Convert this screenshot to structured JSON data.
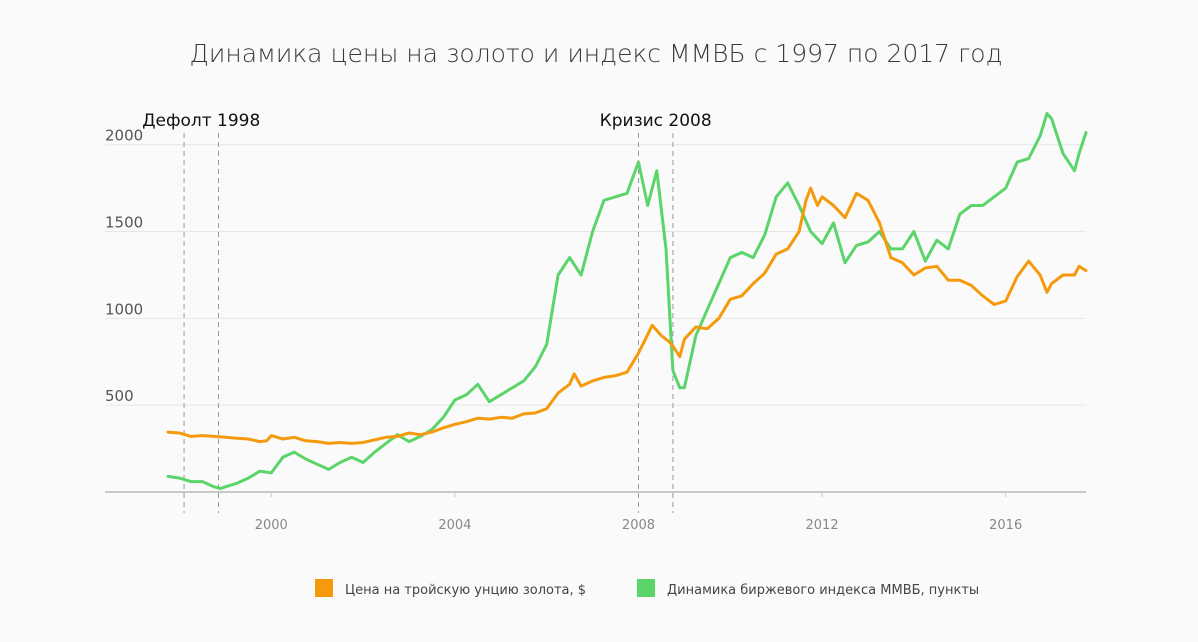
{
  "chart_data": {
    "type": "line",
    "title": "Динамика цены на золото и индекс ММВБ с 1997 по 2017 год",
    "xlabel": "",
    "ylabel": "",
    "xlim": [
      1997.75,
      2017.75
    ],
    "ylim": [
      0,
      2200
    ],
    "x_ticks": [
      2000,
      2004,
      2008,
      2012,
      2016
    ],
    "y_ticks": [
      500,
      1000,
      1500,
      2000
    ],
    "grid": true,
    "legend_position": "bottom-center",
    "annotations": [
      {
        "label": "Дефолт 1998",
        "x_start": 1998.1,
        "x_end": 1998.85
      },
      {
        "label": "Кризис 2008",
        "x_start": 2008.0,
        "x_end": 2008.75
      }
    ],
    "series": [
      {
        "name": "Цена на тройскую унцию золота, $",
        "color": "#f49a0c",
        "points": [
          [
            1997.75,
            345
          ],
          [
            1998.0,
            340
          ],
          [
            1998.25,
            320
          ],
          [
            1998.5,
            325
          ],
          [
            1998.75,
            320
          ],
          [
            1999.0,
            315
          ],
          [
            1999.25,
            310
          ],
          [
            1999.5,
            305
          ],
          [
            1999.75,
            290
          ],
          [
            1999.9,
            295
          ],
          [
            2000.0,
            325
          ],
          [
            2000.25,
            305
          ],
          [
            2000.5,
            315
          ],
          [
            2000.75,
            295
          ],
          [
            2001.0,
            290
          ],
          [
            2001.25,
            280
          ],
          [
            2001.5,
            285
          ],
          [
            2001.75,
            280
          ],
          [
            2002.0,
            285
          ],
          [
            2002.25,
            300
          ],
          [
            2002.5,
            315
          ],
          [
            2002.75,
            320
          ],
          [
            2003.0,
            340
          ],
          [
            2003.25,
            330
          ],
          [
            2003.5,
            345
          ],
          [
            2003.75,
            370
          ],
          [
            2004.0,
            390
          ],
          [
            2004.25,
            405
          ],
          [
            2004.5,
            425
          ],
          [
            2004.75,
            420
          ],
          [
            2005.0,
            430
          ],
          [
            2005.25,
            425
          ],
          [
            2005.5,
            450
          ],
          [
            2005.75,
            455
          ],
          [
            2006.0,
            480
          ],
          [
            2006.25,
            570
          ],
          [
            2006.5,
            620
          ],
          [
            2006.6,
            680
          ],
          [
            2006.75,
            610
          ],
          [
            2007.0,
            640
          ],
          [
            2007.25,
            660
          ],
          [
            2007.5,
            670
          ],
          [
            2007.75,
            690
          ],
          [
            2008.0,
            800
          ],
          [
            2008.15,
            880
          ],
          [
            2008.3,
            960
          ],
          [
            2008.5,
            900
          ],
          [
            2008.65,
            870
          ],
          [
            2008.75,
            840
          ],
          [
            2008.9,
            780
          ],
          [
            2009.0,
            880
          ],
          [
            2009.25,
            950
          ],
          [
            2009.5,
            940
          ],
          [
            2009.75,
            1000
          ],
          [
            2010.0,
            1110
          ],
          [
            2010.25,
            1130
          ],
          [
            2010.5,
            1200
          ],
          [
            2010.75,
            1260
          ],
          [
            2011.0,
            1370
          ],
          [
            2011.25,
            1400
          ],
          [
            2011.5,
            1500
          ],
          [
            2011.65,
            1680
          ],
          [
            2011.75,
            1750
          ],
          [
            2011.9,
            1650
          ],
          [
            2012.0,
            1700
          ],
          [
            2012.25,
            1650
          ],
          [
            2012.5,
            1580
          ],
          [
            2012.75,
            1720
          ],
          [
            2013.0,
            1680
          ],
          [
            2013.25,
            1550
          ],
          [
            2013.5,
            1350
          ],
          [
            2013.75,
            1320
          ],
          [
            2014.0,
            1250
          ],
          [
            2014.25,
            1290
          ],
          [
            2014.5,
            1300
          ],
          [
            2014.75,
            1220
          ],
          [
            2015.0,
            1220
          ],
          [
            2015.25,
            1190
          ],
          [
            2015.5,
            1130
          ],
          [
            2015.75,
            1080
          ],
          [
            2016.0,
            1100
          ],
          [
            2016.25,
            1240
          ],
          [
            2016.5,
            1330
          ],
          [
            2016.75,
            1250
          ],
          [
            2016.9,
            1150
          ],
          [
            2017.0,
            1200
          ],
          [
            2017.25,
            1250
          ],
          [
            2017.5,
            1250
          ],
          [
            2017.6,
            1300
          ],
          [
            2017.75,
            1275
          ]
        ]
      },
      {
        "name": "Динамика биржевого индекса ММВБ, пункты",
        "color": "#5bd46a",
        "points": [
          [
            1997.75,
            90
          ],
          [
            1998.0,
            80
          ],
          [
            1998.25,
            60
          ],
          [
            1998.5,
            60
          ],
          [
            1998.75,
            30
          ],
          [
            1998.9,
            20
          ],
          [
            1999.0,
            30
          ],
          [
            1999.25,
            50
          ],
          [
            1999.5,
            80
          ],
          [
            1999.75,
            120
          ],
          [
            2000.0,
            110
          ],
          [
            2000.25,
            200
          ],
          [
            2000.5,
            230
          ],
          [
            2000.75,
            190
          ],
          [
            2001.0,
            160
          ],
          [
            2001.25,
            130
          ],
          [
            2001.5,
            170
          ],
          [
            2001.75,
            200
          ],
          [
            2002.0,
            170
          ],
          [
            2002.25,
            230
          ],
          [
            2002.5,
            280
          ],
          [
            2002.75,
            330
          ],
          [
            2003.0,
            290
          ],
          [
            2003.25,
            320
          ],
          [
            2003.5,
            360
          ],
          [
            2003.75,
            430
          ],
          [
            2004.0,
            530
          ],
          [
            2004.25,
            560
          ],
          [
            2004.5,
            620
          ],
          [
            2004.75,
            520
          ],
          [
            2005.0,
            560
          ],
          [
            2005.25,
            600
          ],
          [
            2005.5,
            640
          ],
          [
            2005.75,
            720
          ],
          [
            2006.0,
            850
          ],
          [
            2006.25,
            1250
          ],
          [
            2006.5,
            1350
          ],
          [
            2006.75,
            1250
          ],
          [
            2007.0,
            1500
          ],
          [
            2007.25,
            1680
          ],
          [
            2007.5,
            1700
          ],
          [
            2007.75,
            1720
          ],
          [
            2008.0,
            1900
          ],
          [
            2008.2,
            1650
          ],
          [
            2008.4,
            1850
          ],
          [
            2008.6,
            1400
          ],
          [
            2008.75,
            700
          ],
          [
            2008.9,
            600
          ],
          [
            2009.0,
            600
          ],
          [
            2009.25,
            900
          ],
          [
            2009.5,
            1050
          ],
          [
            2009.75,
            1200
          ],
          [
            2010.0,
            1350
          ],
          [
            2010.25,
            1380
          ],
          [
            2010.5,
            1350
          ],
          [
            2010.75,
            1480
          ],
          [
            2011.0,
            1700
          ],
          [
            2011.25,
            1780
          ],
          [
            2011.5,
            1650
          ],
          [
            2011.75,
            1500
          ],
          [
            2012.0,
            1430
          ],
          [
            2012.25,
            1550
          ],
          [
            2012.5,
            1320
          ],
          [
            2012.75,
            1420
          ],
          [
            2013.0,
            1440
          ],
          [
            2013.25,
            1500
          ],
          [
            2013.5,
            1400
          ],
          [
            2013.75,
            1400
          ],
          [
            2014.0,
            1500
          ],
          [
            2014.25,
            1330
          ],
          [
            2014.5,
            1450
          ],
          [
            2014.75,
            1400
          ],
          [
            2015.0,
            1600
          ],
          [
            2015.25,
            1650
          ],
          [
            2015.5,
            1650
          ],
          [
            2015.75,
            1700
          ],
          [
            2016.0,
            1750
          ],
          [
            2016.25,
            1900
          ],
          [
            2016.5,
            1920
          ],
          [
            2016.75,
            2050
          ],
          [
            2016.9,
            2180
          ],
          [
            2017.0,
            2150
          ],
          [
            2017.25,
            1950
          ],
          [
            2017.5,
            1850
          ],
          [
            2017.6,
            1950
          ],
          [
            2017.75,
            2070
          ]
        ]
      }
    ]
  }
}
